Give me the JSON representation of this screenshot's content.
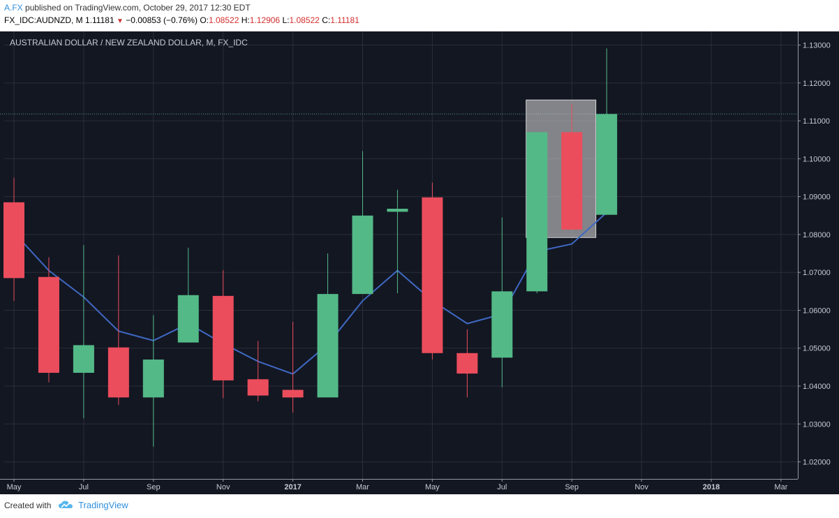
{
  "header": {
    "author": "A.FX",
    "published": "published on TradingView.com, October 29, 2017 12:30 EDT",
    "symbol": "FX_IDC:AUDNZD, M",
    "last": "1.11181",
    "change": "−0.00853 (−0.76%)",
    "o_label": "O:",
    "o_value": "1.08522",
    "h_label": "H:",
    "h_value": "1.12906",
    "l_label": "L:",
    "l_value": "1.08522",
    "c_label": "C:",
    "c_value": "1.11181"
  },
  "footer": {
    "created_with": "Created with",
    "brand": "TradingView"
  },
  "colors": {
    "background": "#131722",
    "grid": "#2a2e39",
    "up": "#53b987",
    "down": "#eb4d5c",
    "ma": "#3f68c2",
    "price_line": "#4f9f93"
  },
  "chart_data": {
    "type": "candlestick",
    "title": "AUSTRALIAN DOLLAR / NEW ZEALAND DOLLAR, M, FX_IDC",
    "ylim": [
      1.0155,
      1.1336
    ],
    "y_ticks": [
      "1.02000",
      "1.03000",
      "1.04000",
      "1.05000",
      "1.06000",
      "1.07000",
      "1.08000",
      "1.09000",
      "1.10000",
      "1.11000",
      "1.12000",
      "1.13000"
    ],
    "x_labels": [
      {
        "label": "May",
        "i": 0,
        "bold": false
      },
      {
        "label": "Jul",
        "i": 2,
        "bold": false
      },
      {
        "label": "Sep",
        "i": 4,
        "bold": false
      },
      {
        "label": "Nov",
        "i": 6,
        "bold": false
      },
      {
        "label": "2017",
        "i": 8,
        "bold": true
      },
      {
        "label": "Mar",
        "i": 10,
        "bold": false
      },
      {
        "label": "May",
        "i": 12,
        "bold": false
      },
      {
        "label": "Jul",
        "i": 14,
        "bold": false
      },
      {
        "label": "Sep",
        "i": 16,
        "bold": false
      },
      {
        "label": "Nov",
        "i": 18,
        "bold": false
      },
      {
        "label": "2018",
        "i": 20,
        "bold": true
      },
      {
        "label": "Mar",
        "i": 22,
        "bold": false
      }
    ],
    "candles": [
      {
        "o": 1.0885,
        "h": 1.095,
        "l": 1.0625,
        "c": 1.0685
      },
      {
        "o": 1.0688,
        "h": 1.074,
        "l": 1.041,
        "c": 1.0435
      },
      {
        "o": 1.0435,
        "h": 1.0772,
        "l": 1.0315,
        "c": 1.0508
      },
      {
        "o": 1.0502,
        "h": 1.0745,
        "l": 1.035,
        "c": 1.037
      },
      {
        "o": 1.037,
        "h": 1.0587,
        "l": 1.024,
        "c": 1.047
      },
      {
        "o": 1.0515,
        "h": 1.0765,
        "l": 1.0515,
        "c": 1.064
      },
      {
        "o": 1.0638,
        "h": 1.0706,
        "l": 1.0368,
        "c": 1.0415
      },
      {
        "o": 1.0418,
        "h": 1.0519,
        "l": 1.036,
        "c": 1.0375
      },
      {
        "o": 1.039,
        "h": 1.057,
        "l": 1.033,
        "c": 1.037
      },
      {
        "o": 1.037,
        "h": 1.075,
        "l": 1.037,
        "c": 1.0643
      },
      {
        "o": 1.0643,
        "h": 1.102,
        "l": 1.0643,
        "c": 1.085
      },
      {
        "o": 1.086,
        "h": 1.0918,
        "l": 1.0645,
        "c": 1.0868
      },
      {
        "o": 1.0898,
        "h": 1.0937,
        "l": 1.047,
        "c": 1.0487
      },
      {
        "o": 1.0487,
        "h": 1.055,
        "l": 1.037,
        "c": 1.0433
      },
      {
        "o": 1.0475,
        "h": 1.0845,
        "l": 1.0397,
        "c": 1.065
      },
      {
        "o": 1.065,
        "h": 1.107,
        "l": 1.0645,
        "c": 1.107
      },
      {
        "o": 1.107,
        "h": 1.1145,
        "l": 1.0813,
        "c": 1.0813
      },
      {
        "o": 1.0852,
        "h": 1.1291,
        "l": 1.0852,
        "c": 1.1118
      }
    ],
    "moving_average": [
      1.0805,
      1.0705,
      1.0635,
      1.0545,
      1.052,
      1.0565,
      1.0512,
      1.0465,
      1.0432,
      1.051,
      1.0625,
      1.0705,
      1.0625,
      1.0565,
      1.059,
      1.0755,
      1.0775,
      1.0858
    ],
    "price_line": 1.11181,
    "highlight_box": {
      "from_i": 15,
      "to_i": 17,
      "top": 1.1155,
      "bottom": 1.0792
    }
  }
}
